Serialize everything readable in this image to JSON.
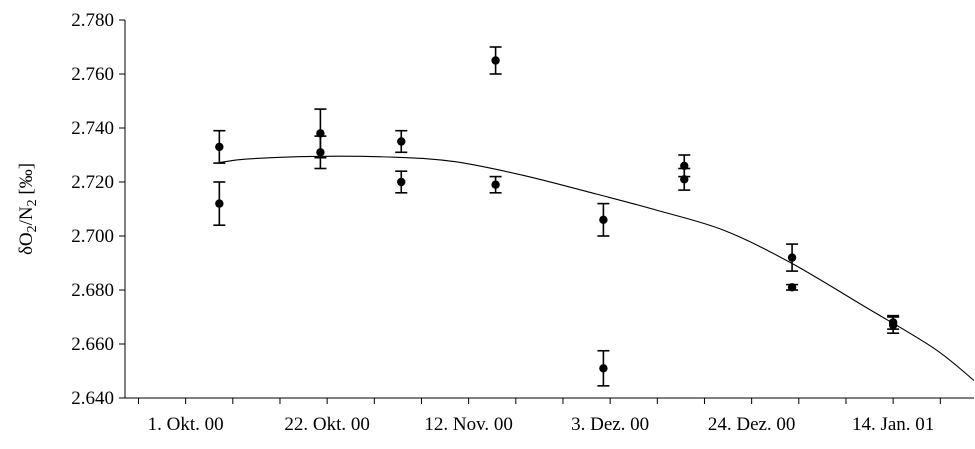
{
  "chart_data": {
    "type": "scatter",
    "title": "",
    "xlabel": "",
    "ylabel": "δO2/N2 [‰]",
    "ylabel_parts": [
      "δO",
      "2",
      "/N",
      "2",
      " [‰]"
    ],
    "x_axis_kind": "date",
    "x_range": [
      "2000-09-22",
      "2001-01-26"
    ],
    "x_ticks": [
      "2000-10-01",
      "2000-10-22",
      "2000-11-12",
      "2000-12-03",
      "2000-12-24",
      "2001-01-14"
    ],
    "x_tick_labels": [
      "1. Okt. 00",
      "22. Okt. 00",
      "12. Nov. 00",
      "3. Dez. 00",
      "24. Dez. 00",
      "14. Jan. 01"
    ],
    "x_minor_step_days": 7,
    "ylim": [
      2.64,
      2.78
    ],
    "y_ticks": [
      2.64,
      2.66,
      2.68,
      2.7,
      2.72,
      2.74,
      2.76,
      2.78
    ],
    "y_tick_labels": [
      "2.640",
      "2.660",
      "2.680",
      "2.700",
      "2.720",
      "2.740",
      "2.760",
      "2.780"
    ],
    "grid": false,
    "series": [
      {
        "marker": "filled-circle",
        "color": "#000000",
        "points": [
          {
            "x": "2000-10-06",
            "y": 2.733,
            "err": 0.006
          },
          {
            "x": "2000-10-06",
            "y": 2.712,
            "err": 0.008
          },
          {
            "x": "2000-10-21",
            "y": 2.738,
            "err": 0.009
          },
          {
            "x": "2000-10-21",
            "y": 2.731,
            "err": 0.006
          },
          {
            "x": "2000-11-02",
            "y": 2.735,
            "err": 0.004
          },
          {
            "x": "2000-11-02",
            "y": 2.72,
            "err": 0.004
          },
          {
            "x": "2000-11-16",
            "y": 2.765,
            "err": 0.005
          },
          {
            "x": "2000-11-16",
            "y": 2.719,
            "err": 0.003
          },
          {
            "x": "2000-12-02",
            "y": 2.706,
            "err": 0.006
          },
          {
            "x": "2000-12-02",
            "y": 2.651,
            "err": 0.0065
          },
          {
            "x": "2000-12-14",
            "y": 2.726,
            "err": 0.004
          },
          {
            "x": "2000-12-14",
            "y": 2.721,
            "err": 0.004
          },
          {
            "x": "2000-12-30",
            "y": 2.692,
            "err": 0.005
          },
          {
            "x": "2000-12-30",
            "y": 2.681,
            "err": 0.001
          },
          {
            "x": "2001-01-14",
            "y": 2.668,
            "err": 0.0025
          },
          {
            "x": "2001-01-14",
            "y": 2.667,
            "err": 0.003
          }
        ]
      }
    ],
    "fit_curve": {
      "style": "thin-solid-line",
      "color": "#000000",
      "points": [
        {
          "x": "2000-10-06",
          "y": 2.7272
        },
        {
          "x": "2000-10-10",
          "y": 2.7285
        },
        {
          "x": "2000-10-20",
          "y": 2.7295
        },
        {
          "x": "2000-11-01",
          "y": 2.7292
        },
        {
          "x": "2000-11-10",
          "y": 2.7275
        },
        {
          "x": "2000-11-20",
          "y": 2.7225
        },
        {
          "x": "2000-12-01",
          "y": 2.7155
        },
        {
          "x": "2000-12-10",
          "y": 2.7095
        },
        {
          "x": "2000-12-20",
          "y": 2.702
        },
        {
          "x": "2000-12-30",
          "y": 2.6898
        },
        {
          "x": "2001-01-10",
          "y": 2.6735
        },
        {
          "x": "2001-01-20",
          "y": 2.6585
        },
        {
          "x": "2001-01-26",
          "y": 2.6465
        }
      ]
    }
  }
}
